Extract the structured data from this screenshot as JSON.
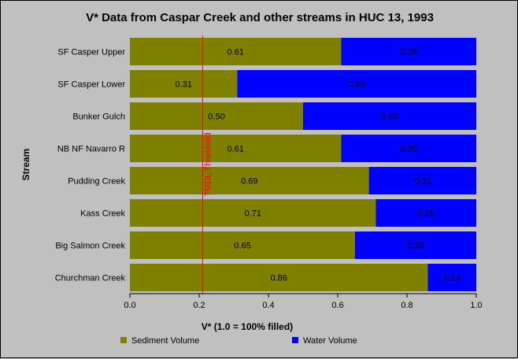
{
  "chart_data": {
    "type": "bar",
    "orientation": "horizontal",
    "stacked": true,
    "title": "V* Data from Caspar Creek and other streams in HUC 13, 1993",
    "xlabel": "V* (1.0 = 100% filled)",
    "ylabel": "Stream",
    "xlim": [
      0,
      1
    ],
    "xticks": [
      "0.0",
      "0.2",
      "0.4",
      "0.6",
      "0.8",
      "1.0"
    ],
    "grid": false,
    "legend_position": "bottom",
    "categories": [
      "SF Casper Upper",
      "SF Casper Lower",
      "Bunker Gulch",
      "NB NF Navarro R",
      "Pudding Creek",
      "Kass Creek",
      "Big Salmon Creek",
      "Churchman Creek"
    ],
    "series": [
      {
        "name": "Sediment Volume",
        "color": "#808000",
        "values": [
          0.61,
          0.31,
          0.5,
          0.61,
          0.69,
          0.71,
          0.65,
          0.86
        ],
        "labels": [
          "0.61",
          "0.31",
          "0.50",
          "0.61",
          "0.69",
          "0.71",
          "0.65",
          "0.86"
        ]
      },
      {
        "name": "Water Volume",
        "color": "#0000ff",
        "values": [
          0.39,
          0.69,
          0.5,
          0.39,
          0.31,
          0.29,
          0.35,
          0.14
        ],
        "labels": [
          "0.39",
          "0.69",
          "0.50",
          "0.39",
          "0.31",
          "0.29",
          "0.35",
          "0.14"
        ]
      }
    ],
    "threshold": {
      "label": "TMDL Threshold",
      "value": 0.21,
      "color": "#ff0000"
    }
  }
}
